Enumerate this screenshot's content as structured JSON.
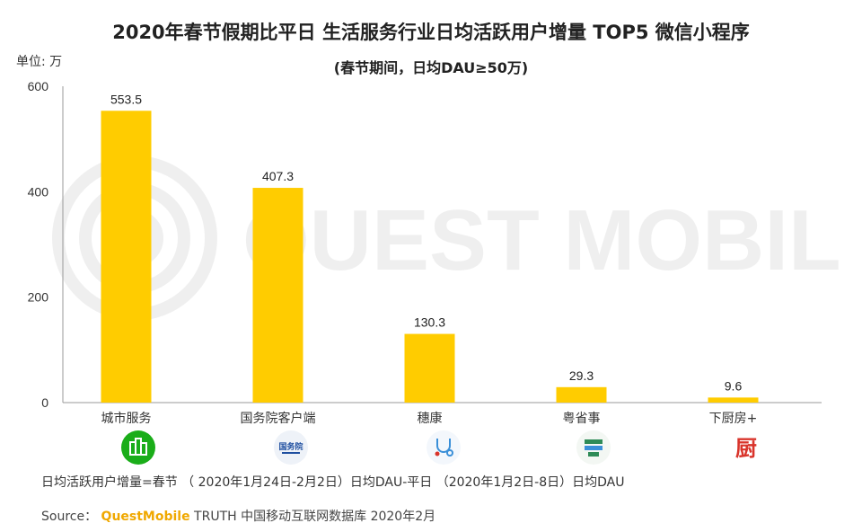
{
  "title": "2020年春节假期比平日 生活服务行业日均活跃用户增量 TOP5 微信小程序",
  "subtitle": "(春节期间，日均DAU≥50万)",
  "unit_label": "单位: 万",
  "chart_data": {
    "type": "bar",
    "categories": [
      "城市服务",
      "国务院客户端",
      "穗康",
      "粤省事",
      "下厨房+"
    ],
    "values": [
      553.5,
      407.3,
      130.3,
      29.3,
      9.6
    ],
    "value_labels": [
      "553.5",
      "407.3",
      "130.3",
      "29.3",
      "9.6"
    ],
    "yticks": [
      0,
      200,
      400,
      600
    ],
    "ylim": [
      0,
      600
    ],
    "bar_color": "#FFCC00",
    "grid": false
  },
  "app_icons": [
    {
      "name": "city-service-icon",
      "color": "#1AAD19"
    },
    {
      "name": "state-council-icon",
      "color": "#1F4FA0",
      "text": "国务院"
    },
    {
      "name": "suikang-icon",
      "color": "#3A8FD8"
    },
    {
      "name": "yueshengshi-icon",
      "color": "#2E8B57"
    },
    {
      "name": "xiachufang-icon",
      "color": "#D9342B",
      "text": "厨"
    }
  ],
  "watermark": "QUEST MOBILE",
  "footnote": "日均活跃用户增量=春节 （ 2020年1月24日-2月2日）日均DAU-平日 （2020年1月2日-8日）日均DAU",
  "source": {
    "prefix": "Source：",
    "brand": "QuestMobile",
    "suffix": " TRUTH 中国移动互联网数据库 2020年2月"
  }
}
